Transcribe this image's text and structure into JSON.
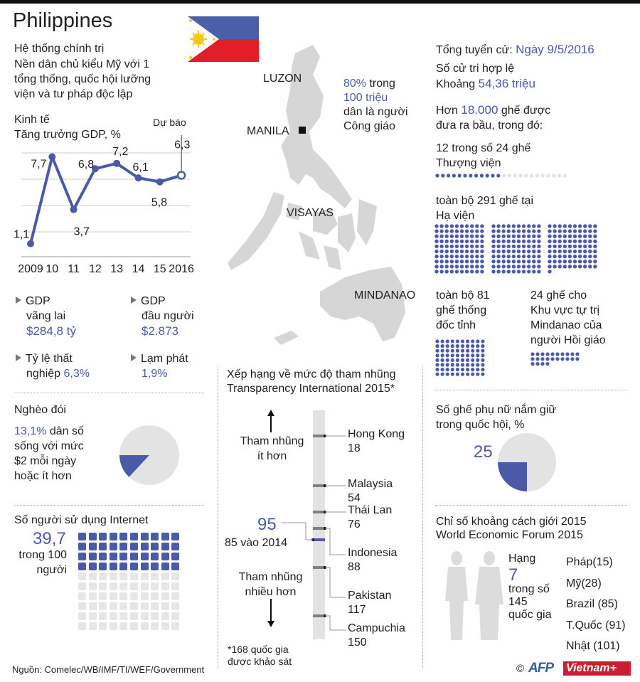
{
  "title": "Philippines",
  "political": {
    "heading": "Hệ thống chính trị",
    "lines": [
      "Nền dân chủ kiểu Mỹ với 1",
      "tổng thống, quốc hội lưỡng",
      "viện và tư pháp độc lập"
    ]
  },
  "economy": {
    "heading": "Kinh tế",
    "subtitle": "Tăng trưởng GDP, %",
    "forecast_label": "Dự báo"
  },
  "chart_data": {
    "type": "line",
    "title": "Tăng trưởng GDP, %",
    "categories": [
      "2009",
      "10",
      "11",
      "12",
      "13",
      "14",
      "15",
      "2016"
    ],
    "values": [
      1.1,
      7.7,
      3.7,
      6.8,
      7.2,
      6.1,
      5.8,
      6.3
    ],
    "value_labels": [
      "1,1",
      "7,7",
      "3,7",
      "6,8",
      "7,2",
      "6,1",
      "5,8",
      "6,3"
    ],
    "forecast_index": 7,
    "ylim": [
      0,
      8
    ],
    "grid": true,
    "color": "#4a5aa8"
  },
  "indicators": [
    {
      "label1": "GDP",
      "label2": "vãng lai",
      "value": "$284,8 tỷ"
    },
    {
      "label1": "GDP",
      "label2": "đầu người",
      "value": "$2.873"
    },
    {
      "label1": "Tỷ lệ thất",
      "label2": "nghiệp",
      "value": "6,3%"
    },
    {
      "label1": "Lạm phát",
      "label2": "",
      "value": "1,9%"
    }
  ],
  "poverty": {
    "heading": "Nghèo đói",
    "value": "13,1%",
    "line1": "dân số",
    "lines": [
      "sống với mức",
      "$2 mỗi ngày",
      "hoặc ít hơn"
    ],
    "percent": 13.1
  },
  "internet": {
    "heading": "Số người sử dụng Internet",
    "value": "39,7",
    "line1": "trong 100",
    "line2": "người",
    "per_100": 39.7
  },
  "map": {
    "luzon": "LUZON",
    "manila": "MANILA",
    "visayas": "VISAYAS",
    "mindanao": "MINDANAO"
  },
  "religion": {
    "pct": "80%",
    "word": "trong",
    "population": "100 triệu",
    "line3": "dân là người",
    "line4": "Công giáo"
  },
  "corruption": {
    "title1": "Xếp hạng về mức độ tham nhũng",
    "title2": "Transparency International 2015*",
    "less_label1": "Tham nhũng",
    "less_label2": "ít hơn",
    "more_label1": "Tham nhũng",
    "more_label2": "nhiều hơn",
    "total": 168,
    "countries": [
      {
        "name": "Hong Kong",
        "rank": "18"
      },
      {
        "name": "Malaysia",
        "rank": "54"
      },
      {
        "name": "Thái Lan",
        "rank": "76"
      },
      {
        "name": "Indonesia",
        "rank": "88"
      },
      {
        "name": "Pakistan",
        "rank": "117"
      },
      {
        "name": "Campuchia",
        "rank": "150"
      }
    ],
    "philippines_rank": "95",
    "previous": "85 vào 2014",
    "footnote1": "*168 quốc gia",
    "footnote2": "được khảo sát"
  },
  "election": {
    "label": "Tổng tuyển cử:",
    "date": "Ngày 9/5/2016",
    "voters_label": "Số cử tri hợp lệ",
    "voters_prefix": "Khoảng",
    "voters": "54,36 triệu",
    "seats_prefix": "Hơn",
    "seats": "18.000",
    "seats_suffix": "ghế được",
    "seats_line2": "đưa ra bầu, trong đó:",
    "senate1": "12 trong số 24 ghế",
    "senate2": "Thượng viện",
    "senate_elected": 12,
    "senate_total": 24,
    "house1": "toàn bộ 291 ghế tại",
    "house2": "Hạ viện",
    "house_total": 291,
    "gov_lines": [
      "toàn bộ 81",
      "ghế thống",
      "đốc tỉnh"
    ],
    "gov_total": 81,
    "armm_lines": [
      "24 ghế cho",
      "Khu vực tự trị",
      "Mindanao  của",
      "người Hồi giáo"
    ],
    "armm_total": 24
  },
  "women": {
    "heading1": "Số ghế phụ nữ nắm giữ",
    "heading2": "trong quốc hội, %",
    "value": "25",
    "percent": 25
  },
  "gender": {
    "title1": "Chỉ số khoảng cách giới 2015",
    "title2": "World Economic Forum 2015",
    "rank_label": "Hạng",
    "rank": "7",
    "of1": "trong số",
    "of2": "145",
    "of3": "quốc gia",
    "others": [
      "Pháp(15)",
      "Mỹ(28)",
      "Brazil (85)",
      "T.Quốc (91)",
      "Nhật (101)"
    ]
  },
  "source": "Nguồn: Comelec/WB/IMF/TI/WEF/Government",
  "logos": {
    "copyright": "©",
    "afp": "AFP",
    "vietnam": "Vietnam+"
  },
  "colors": {
    "accent": "#4a5aa8",
    "gray": "#e3e3e4",
    "map": "#d6d6d7",
    "flag_blue": "#4b5fa8",
    "flag_red": "#e41e26",
    "flag_sun": "#f6c919"
  }
}
